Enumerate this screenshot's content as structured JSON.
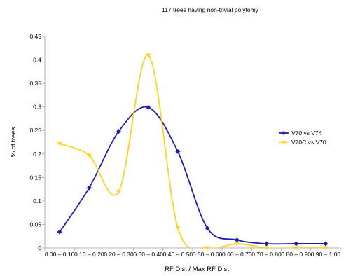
{
  "chart_data": {
    "type": "line",
    "title": "117 trees having non-trivial polytomy",
    "xlabel": "RF Dist / Max RF Dist",
    "ylabel": "% of trees",
    "categories": [
      "0.00 – 0.10",
      "0.10 – 0.20",
      "0.20 – 0.30",
      "0.30 – 0.40",
      "0.40 – 0.50",
      "0.50 – 0.60",
      "0.60 – 0.70",
      "0.70 – 0.80",
      "0.80 – 0.90",
      "0.90 – 1.00"
    ],
    "ylim": [
      0,
      0.45
    ],
    "yticks": [
      0,
      0.05,
      0.1,
      0.15,
      0.2,
      0.25,
      0.3,
      0.35,
      0.4,
      0.45
    ],
    "ytick_labels": [
      "0",
      "0.05",
      "0.1",
      "0.15",
      "0.2",
      "0.25",
      "0.3",
      "0.35",
      "0.4",
      "0.45"
    ],
    "grid": false,
    "legend_position": "right",
    "series": [
      {
        "name": "V70 vs V74",
        "color": "#1f1fb4",
        "marker": "diamond",
        "values": [
          0.034,
          0.128,
          0.248,
          0.299,
          0.205,
          0.042,
          0.017,
          0.009,
          0.009,
          0.009
        ]
      },
      {
        "name": "V70C vs V70",
        "color": "#ffd320",
        "marker": "triangle-down",
        "values": [
          0.222,
          0.197,
          0.12,
          0.41,
          0.043,
          0.0,
          0.009,
          0.0,
          0.0,
          0.0
        ]
      }
    ]
  }
}
